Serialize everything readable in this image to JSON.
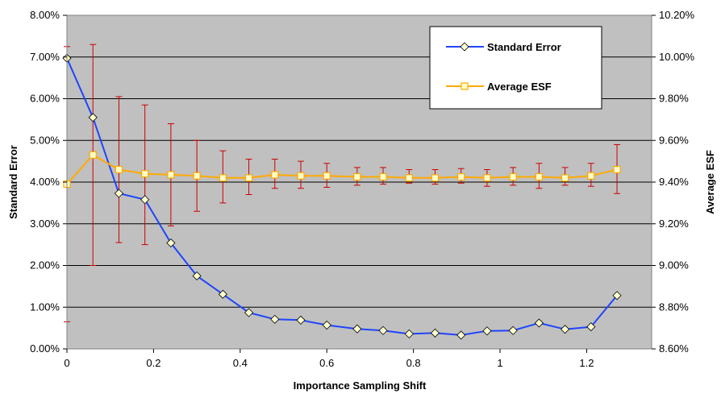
{
  "chart_data": {
    "type": "line",
    "xlabel": "Importance Sampling Shift",
    "ylabel": "Standard Error",
    "y2label": "Average ESF",
    "xlim": [
      0,
      1.35
    ],
    "xticks": [
      "0",
      "0.2",
      "0.4",
      "0.6",
      "0.8",
      "1",
      "1.2"
    ],
    "ylim": [
      0,
      8
    ],
    "yticks": [
      "0.00%",
      "1.00%",
      "2.00%",
      "3.00%",
      "4.00%",
      "5.00%",
      "6.00%",
      "7.00%",
      "8.00%"
    ],
    "y2lim": [
      8.6,
      10.2
    ],
    "y2ticks": [
      "8.60%",
      "8.80%",
      "9.00%",
      "9.20%",
      "9.40%",
      "9.60%",
      "9.80%",
      "10.00%",
      "10.20%"
    ],
    "grid": true,
    "legend_position": "top-right",
    "x": [
      0,
      0.06,
      0.12,
      0.18,
      0.24,
      0.3,
      0.36,
      0.42,
      0.48,
      0.54,
      0.6,
      0.67,
      0.73,
      0.79,
      0.85,
      0.91,
      0.97,
      1.03,
      1.09,
      1.15,
      1.21,
      1.27
    ],
    "series": [
      {
        "name": "Standard Error",
        "axis": "left",
        "color": "#1f45fc",
        "marker": "diamond",
        "values": [
          6.97,
          5.55,
          3.73,
          3.58,
          2.54,
          1.75,
          1.31,
          0.87,
          0.71,
          0.69,
          0.57,
          0.48,
          0.44,
          0.36,
          0.38,
          0.33,
          0.43,
          0.44,
          0.62,
          0.47,
          0.53,
          1.28
        ]
      },
      {
        "name": "Average ESF",
        "axis": "right",
        "color": "#ffaa00",
        "marker": "square",
        "values": [
          9.39,
          9.53,
          9.46,
          9.44,
          9.435,
          9.43,
          9.42,
          9.42,
          9.435,
          9.43,
          9.43,
          9.425,
          9.425,
          9.42,
          9.42,
          9.425,
          9.42,
          9.425,
          9.425,
          9.42,
          9.43,
          9.46
        ],
        "error_bars": {
          "color": "#cc0000",
          "lower": [
            8.73,
            9.0,
            9.11,
            9.1,
            9.19,
            9.26,
            9.3,
            9.34,
            9.37,
            9.37,
            9.375,
            9.385,
            9.39,
            9.395,
            9.39,
            9.395,
            9.38,
            9.385,
            9.37,
            9.385,
            9.38,
            9.345
          ],
          "upper": [
            10.05,
            10.06,
            9.81,
            9.77,
            9.68,
            9.6,
            9.55,
            9.51,
            9.51,
            9.5,
            9.49,
            9.47,
            9.47,
            9.46,
            9.46,
            9.465,
            9.46,
            9.47,
            9.49,
            9.47,
            9.49,
            9.58
          ]
        }
      }
    ]
  }
}
